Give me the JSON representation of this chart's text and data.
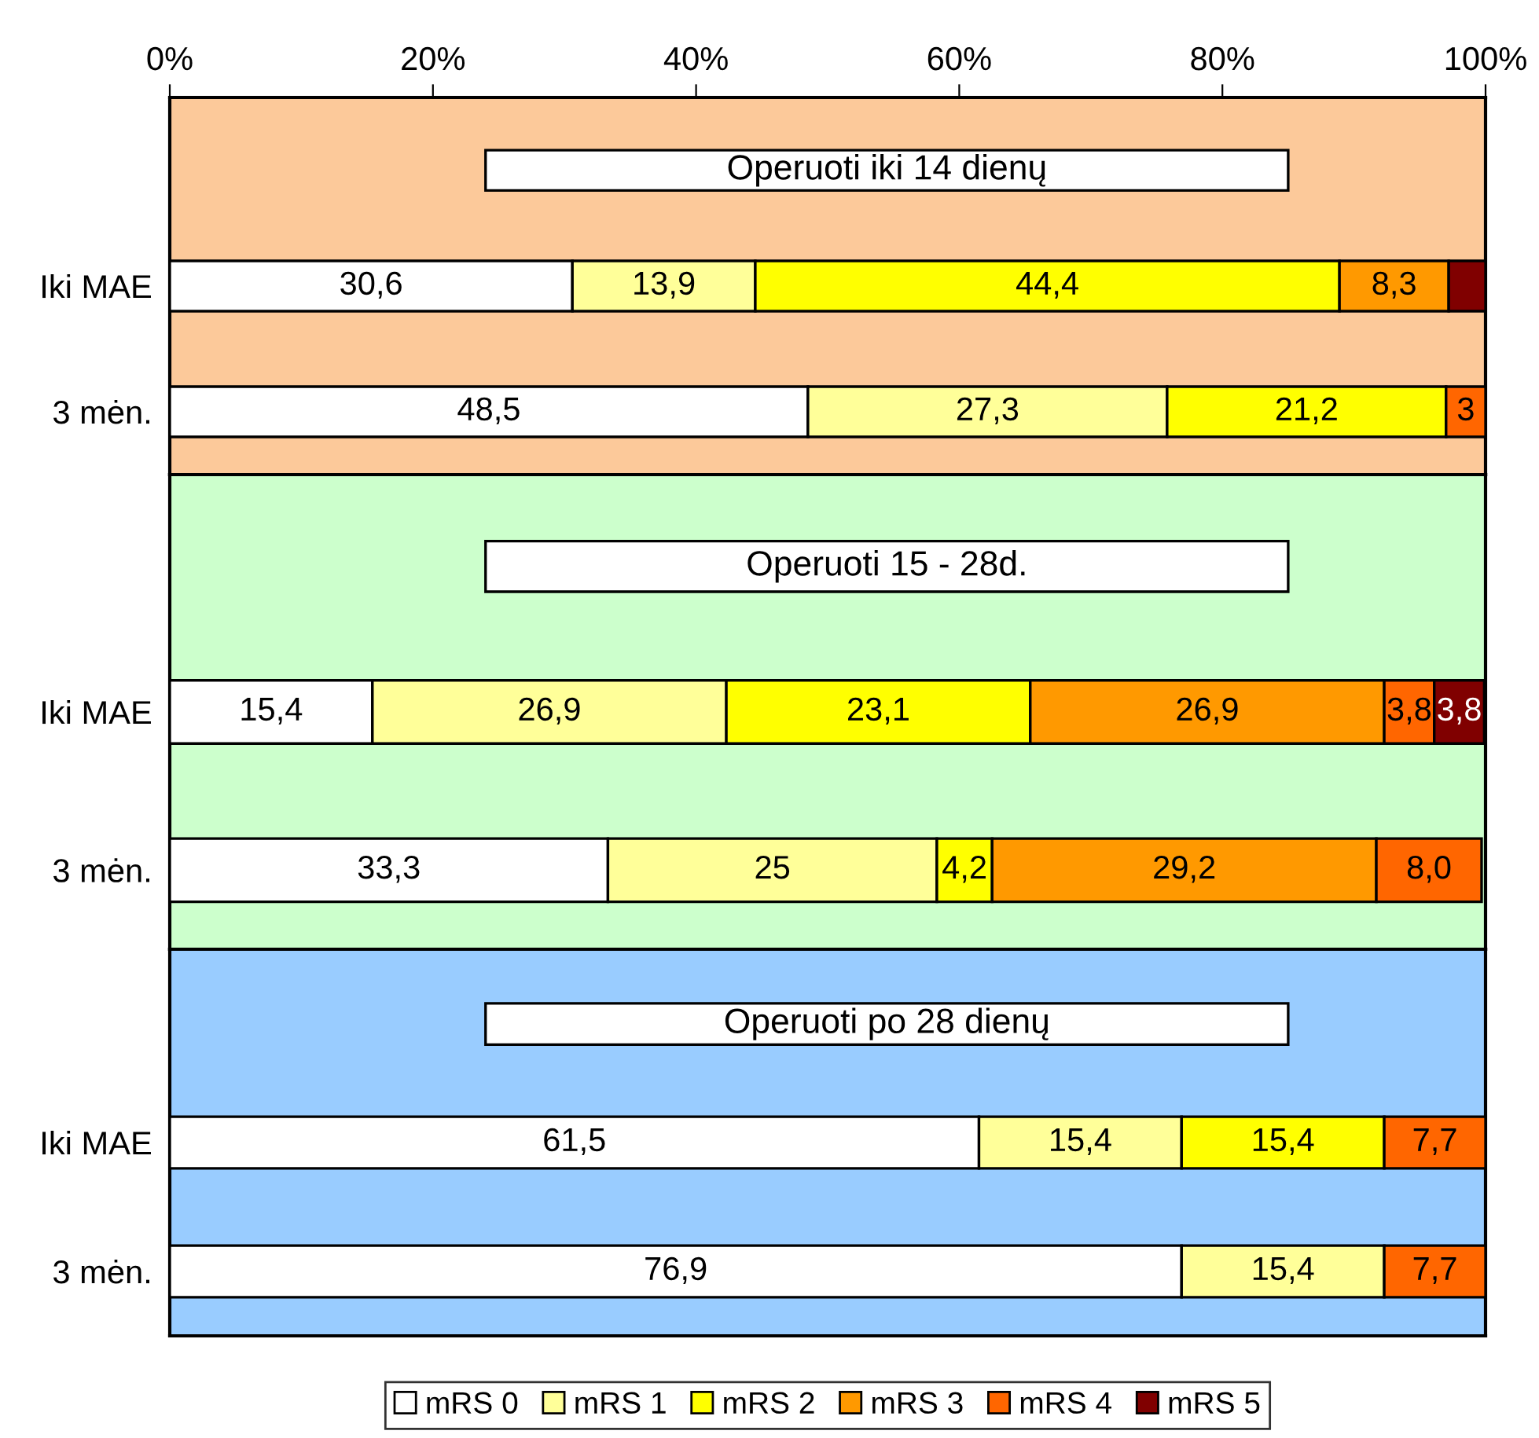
{
  "chart_data": [
    {
      "type": "bar",
      "orientation": "horizontal",
      "stacked": true,
      "categories": [
        "Iki MAE",
        "3 mėn."
      ],
      "xlim": [
        0,
        100
      ],
      "xticks": [
        {
          "value": 0,
          "label": "0%"
        },
        {
          "value": 20,
          "label": "20%"
        },
        {
          "value": 40,
          "label": "40%"
        },
        {
          "value": 60,
          "label": "60%"
        },
        {
          "value": 80,
          "label": "80%"
        },
        {
          "value": 100,
          "label": "100%"
        }
      ],
      "bands": [
        {
          "axis": "x",
          "from": 0,
          "to": 100,
          "label": "Operuoti iki 14 dienų",
          "color": "#fcc99a"
        }
      ],
      "series": [
        {
          "color": "#ffffff",
          "values": [
            30.6,
            48.5
          ],
          "value_labels": [
            "30,6",
            "48,5"
          ]
        },
        {
          "color": "#ffff99",
          "values": [
            13.9,
            27.3
          ],
          "value_labels": [
            "13,9",
            "27,3"
          ]
        },
        {
          "color": "#ffff00",
          "values": [
            44.4,
            21.2
          ],
          "value_labels": [
            "44,4",
            "21,2"
          ]
        },
        {
          "color": "#ff9900",
          "values": [
            8.3,
            null
          ],
          "value_labels": [
            "8,3",
            null
          ]
        },
        {
          "color": "#ff6600",
          "values": [
            null,
            3
          ],
          "value_labels": [
            null,
            "3"
          ]
        },
        {
          "color": "#800000",
          "values": [
            2.8,
            null
          ],
          "value_labels": [
            null,
            null
          ]
        }
      ]
    },
    {
      "type": "bar",
      "orientation": "horizontal",
      "stacked": true,
      "categories": [
        "Iki MAE",
        "3 mėn."
      ],
      "xlim": [
        0,
        100
      ],
      "tick_labels": "y",
      "bands": [
        {
          "axis": "x",
          "from": 0,
          "to": 100,
          "label": "Operuoti 15 - 28d.",
          "color": "#ccffcc"
        }
      ],
      "series": [
        {
          "color": "#ffffff",
          "values": [
            15.4,
            33.3
          ],
          "value_labels": [
            "15,4",
            "33,3"
          ]
        },
        {
          "color": "#ffff99",
          "values": [
            26.9,
            25
          ],
          "value_labels": [
            "26,9",
            "25"
          ]
        },
        {
          "color": "#ffff00",
          "values": [
            23.1,
            4.2
          ],
          "value_labels": [
            "23,1",
            "4,2"
          ]
        },
        {
          "color": "#ff9900",
          "values": [
            26.9,
            29.2
          ],
          "value_labels": [
            "26,9",
            "29,2"
          ]
        },
        {
          "color": "#ff6600",
          "values": [
            3.8,
            8.0
          ],
          "value_labels": [
            "3,8",
            "8,0"
          ]
        },
        {
          "color": "#800000",
          "values": [
            3.8,
            null
          ],
          "value_labels": [
            "3,8",
            null
          ]
        }
      ]
    },
    {
      "type": "bar",
      "orientation": "horizontal",
      "stacked": true,
      "categories": [
        "Iki MAE",
        "3 mėn."
      ],
      "xlim": [
        0,
        100
      ],
      "tick_labels": "y",
      "legend": "bottom",
      "bands": [
        {
          "axis": "x",
          "from": 0,
          "to": 100,
          "label": "Operuoti po 28 dienų",
          "color": "#99ccff"
        }
      ],
      "series": [
        {
          "name": "mRS 0",
          "color": "#ffffff",
          "values": [
            61.5,
            76.9
          ],
          "value_labels": [
            "61,5",
            "76,9"
          ]
        },
        {
          "name": "mRS 1",
          "color": "#ffff99",
          "values": [
            15.4,
            15.4
          ],
          "value_labels": [
            "15,4",
            "15,4"
          ]
        },
        {
          "name": "mRS 2",
          "color": "#ffff00",
          "values": [
            15.4,
            null
          ],
          "value_labels": [
            "15,4",
            null
          ]
        },
        {
          "name": "mRS 3",
          "color": "#ff9900",
          "values": [
            null,
            null
          ],
          "value_labels": [
            null,
            null
          ]
        },
        {
          "name": "mRS 4",
          "color": "#ff6600",
          "values": [
            7.7,
            7.7
          ],
          "value_labels": [
            "7,7",
            "7,7"
          ]
        },
        {
          "name": "mRS 5",
          "color": "#800000",
          "values": [
            null,
            null
          ],
          "value_labels": [
            null,
            null
          ]
        }
      ]
    }
  ]
}
